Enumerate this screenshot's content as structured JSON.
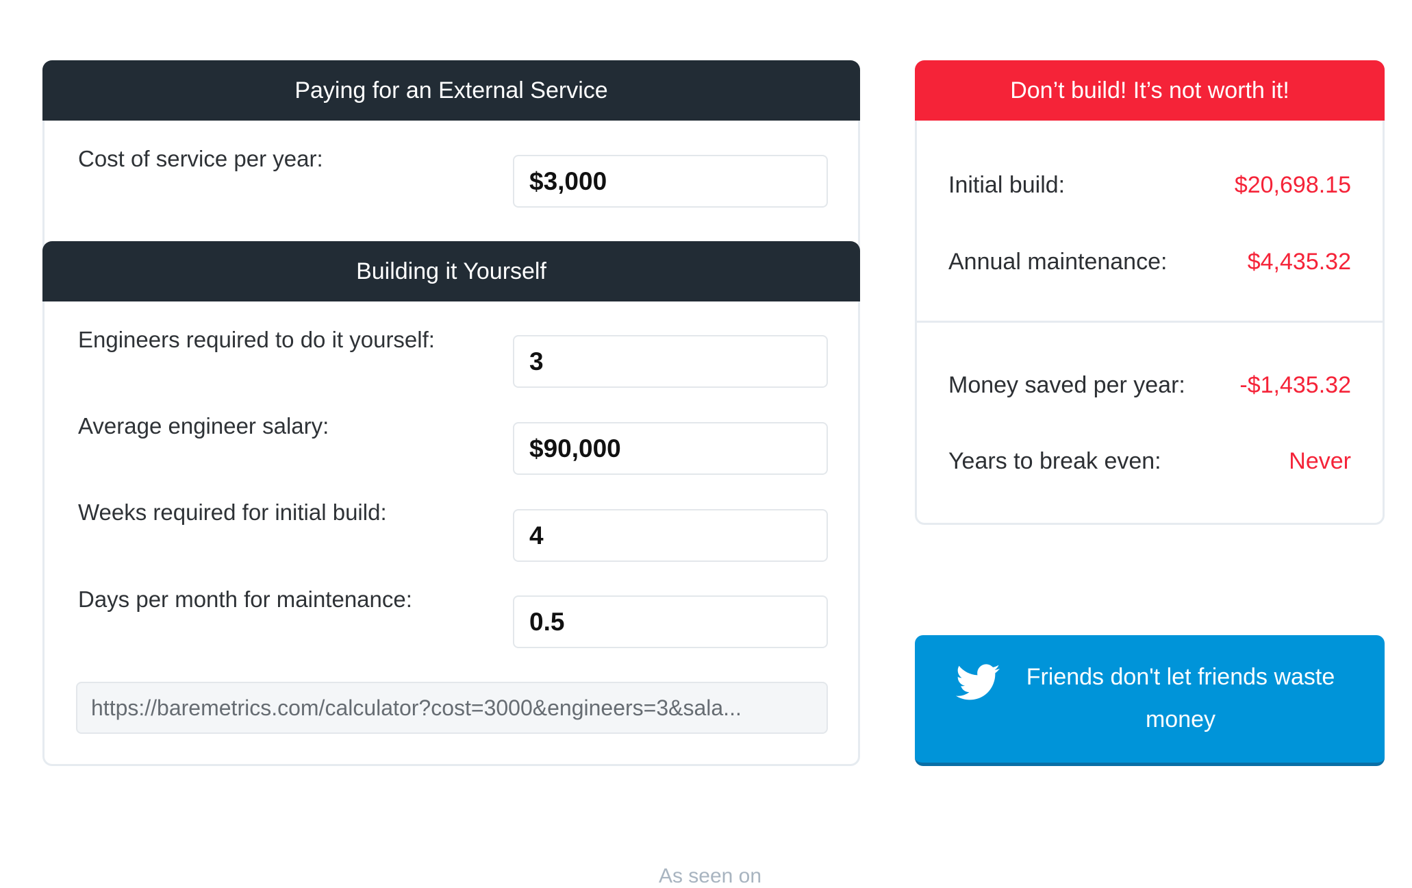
{
  "external": {
    "title": "Paying for an External Service",
    "cost_label": "Cost of service per year:",
    "cost_value": "$3,000"
  },
  "build": {
    "title": "Building it Yourself",
    "fields": [
      {
        "label": "Engineers required to do it yourself:",
        "value": "3"
      },
      {
        "label": "Average engineer salary:",
        "value": "$90,000"
      },
      {
        "label": "Weeks required for initial build:",
        "value": "4"
      },
      {
        "label": "Days per month for maintenance:",
        "value": "0.5"
      }
    ],
    "share_url": "https://baremetrics.com/calculator?cost=3000&engineers=3&sala..."
  },
  "result": {
    "verdict": "Don’t build! It’s not worth it!",
    "verdict_color": "#f52338",
    "rows": [
      {
        "label": "Initial build:",
        "value": "$20,698.15"
      },
      {
        "label": "Annual maintenance:",
        "value": "$4,435.32"
      },
      {
        "label": "Money saved per year:",
        "value": "-$1,435.32"
      },
      {
        "label": "Years to break even:",
        "value": "Never"
      }
    ]
  },
  "tweet": {
    "label": "Friends don't let friends waste money",
    "icon": "twitter-bird-icon",
    "color": "#0094d9"
  },
  "footer": {
    "seen_on": "As seen on"
  }
}
